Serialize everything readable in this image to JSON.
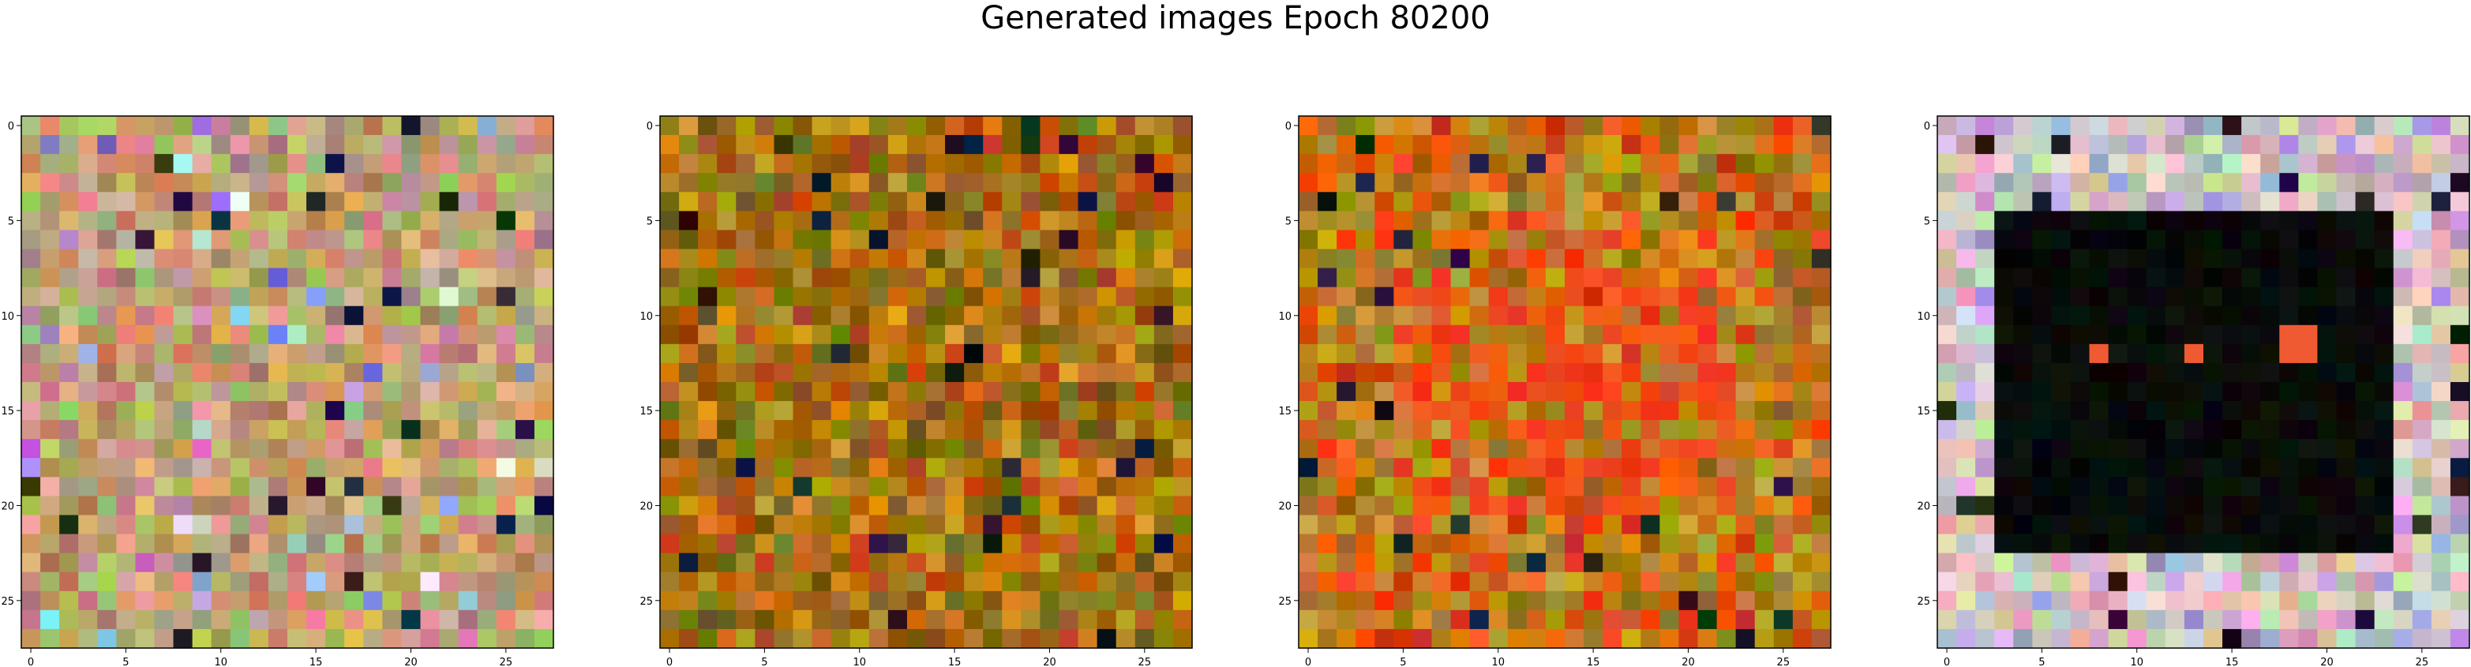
{
  "figure": {
    "title": "Generated images Epoch 80200"
  },
  "panels": [
    {
      "name": "panel-1",
      "description_style": "noisy-pastel",
      "base": [
        "#c9a46a",
        "#d59b8b",
        "#a8b86a",
        "#b98f6c"
      ]
    },
    {
      "name": "panel-2",
      "description_style": "noisy-orange",
      "base": [
        "#a37214",
        "#c68a1c",
        "#7e6a10",
        "#b55a12"
      ]
    },
    {
      "name": "panel-3",
      "description_style": "noisy-orange-red",
      "base": [
        "#b8902a",
        "#d27a1a",
        "#9d7a16",
        "#e24a14"
      ]
    },
    {
      "name": "panel-4",
      "description_style": "pastel-frame-dark-center",
      "base": [
        "#d6b2b4",
        "#c6d3b0",
        "#b3a6cc",
        "#e0c6d6"
      ]
    }
  ],
  "axes": {
    "x_ticks": [
      "0",
      "5",
      "10",
      "15",
      "20",
      "25"
    ],
    "y_ticks": [
      "0",
      "5",
      "10",
      "15",
      "20",
      "25"
    ]
  },
  "colors": {
    "frame": "#000000",
    "background": "#ffffff"
  }
}
